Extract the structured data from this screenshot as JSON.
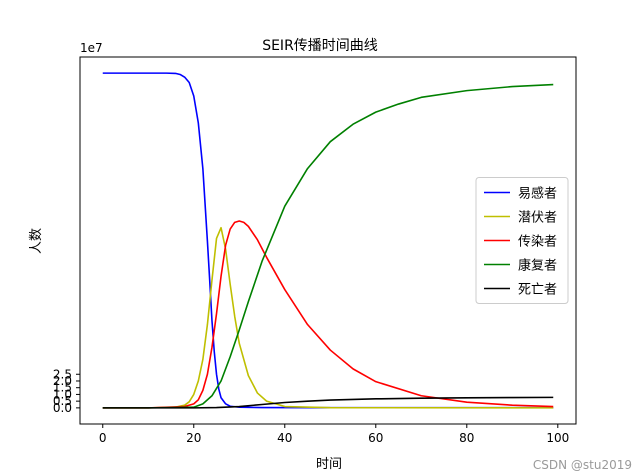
{
  "chart_data": {
    "type": "line",
    "title": "SEIR传播时间曲线",
    "xlabel": "时间",
    "ylabel": "人数",
    "y_offset_text": "1e7",
    "xlim": [
      -5,
      104
    ],
    "ylim": [
      -1.2,
      26.1
    ],
    "y_unit_multiplier": 10000000,
    "xticks": [
      0,
      20,
      40,
      60,
      80,
      100
    ],
    "yticks": [
      0.0,
      0.5,
      1.0,
      1.5,
      2.0,
      2.5
    ],
    "ytick_labels": [
      "0.0",
      "0.5",
      "1.0",
      "1.5",
      "2.0",
      "2.5"
    ],
    "legend_position": "center-right",
    "series": [
      {
        "name": "易感者",
        "color": "#0000ff",
        "x": [
          0,
          5,
          10,
          14,
          16,
          17,
          18,
          19,
          20,
          21,
          22,
          23,
          23.5,
          24,
          24.5,
          25,
          25.5,
          26,
          27,
          28,
          30,
          35,
          50,
          99
        ],
        "y": [
          24.9,
          24.9,
          24.9,
          24.9,
          24.88,
          24.8,
          24.6,
          24.2,
          23.2,
          21.2,
          17.8,
          12.4,
          9.5,
          6.5,
          4.2,
          2.5,
          1.4,
          0.75,
          0.3,
          0.12,
          0.05,
          0.02,
          0.01,
          0.01
        ]
      },
      {
        "name": "潜伏者",
        "color": "#bfbf00",
        "x": [
          0,
          10,
          16,
          18,
          19,
          20,
          21,
          22,
          23,
          24,
          25,
          26,
          27,
          28,
          29,
          30,
          32,
          34,
          36,
          40,
          50,
          99
        ],
        "y": [
          0.0,
          0.0,
          0.05,
          0.2,
          0.45,
          1.0,
          2.0,
          3.6,
          6.2,
          9.5,
          12.6,
          13.4,
          11.8,
          9.2,
          6.8,
          4.8,
          2.4,
          1.1,
          0.5,
          0.1,
          0.01,
          0.0
        ]
      },
      {
        "name": "传染者",
        "color": "#ff0000",
        "x": [
          0,
          10,
          18,
          20,
          21,
          22,
          23,
          24,
          25,
          26,
          27,
          28,
          29,
          30,
          31,
          32,
          34,
          36,
          40,
          45,
          50,
          55,
          60,
          70,
          80,
          90,
          99
        ],
        "y": [
          0.0,
          0.0,
          0.1,
          0.3,
          0.6,
          1.3,
          2.5,
          4.5,
          7.0,
          9.8,
          12.1,
          13.3,
          13.8,
          13.9,
          13.8,
          13.5,
          12.5,
          11.2,
          8.8,
          6.2,
          4.3,
          2.9,
          1.95,
          0.9,
          0.42,
          0.2,
          0.1
        ]
      },
      {
        "name": "康复者",
        "color": "#008000",
        "x": [
          0,
          10,
          20,
          22,
          24,
          26,
          28,
          30,
          32,
          35,
          40,
          45,
          50,
          55,
          60,
          65,
          70,
          80,
          90,
          99
        ],
        "y": [
          0.0,
          0.0,
          0.05,
          0.3,
          0.9,
          2.0,
          3.8,
          5.8,
          7.9,
          10.9,
          15.0,
          17.8,
          19.8,
          21.1,
          22.0,
          22.6,
          23.1,
          23.6,
          23.9,
          24.05
        ]
      },
      {
        "name": "死亡者",
        "color": "#000000",
        "x": [
          0,
          10,
          20,
          25,
          30,
          35,
          40,
          45,
          50,
          60,
          70,
          80,
          90,
          99
        ],
        "y": [
          0.0,
          0.0,
          0.0,
          0.02,
          0.1,
          0.25,
          0.4,
          0.5,
          0.58,
          0.67,
          0.72,
          0.75,
          0.77,
          0.78
        ]
      }
    ]
  },
  "watermark": "CSDN @stu2019"
}
